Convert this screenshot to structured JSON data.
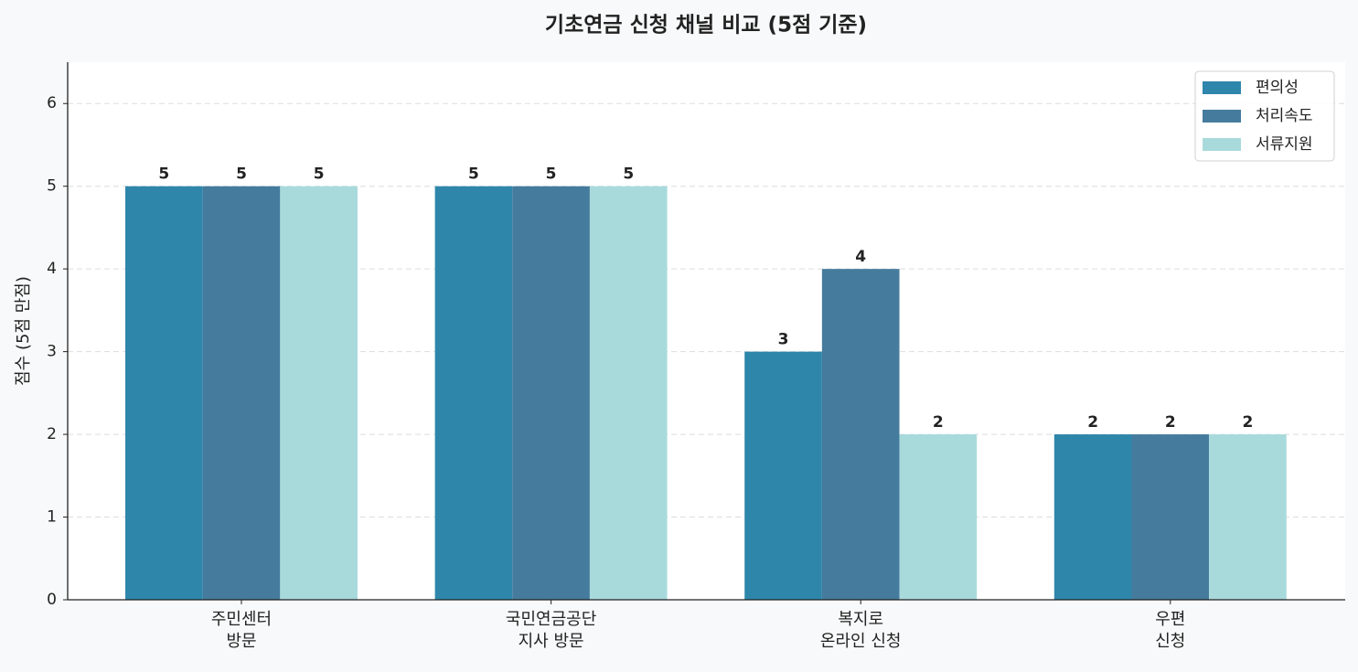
{
  "chart_data": {
    "type": "bar",
    "title": "기초연금 신청 채널 비교 (5점 기준)",
    "y_label": "점수 (5점 만점)",
    "categories": [
      "주민센터\n방문",
      "국민연금공단\n지사 방문",
      "복지로\n온라인 신청",
      "우편\n신청"
    ],
    "series": [
      {
        "name": "편의성",
        "color": "#2e86ab",
        "values": [
          5,
          5,
          3,
          2
        ]
      },
      {
        "name": "처리속도",
        "color": "#457b9d",
        "values": [
          5,
          5,
          4,
          2
        ]
      },
      {
        "name": "서류지원",
        "color": "#a8dadc",
        "values": [
          5,
          5,
          2,
          2
        ]
      }
    ],
    "ylim": [
      0,
      6.5
    ],
    "yticks": [
      0,
      1,
      2,
      3,
      4,
      5,
      6
    ],
    "grid": true,
    "legend": "upper right"
  }
}
